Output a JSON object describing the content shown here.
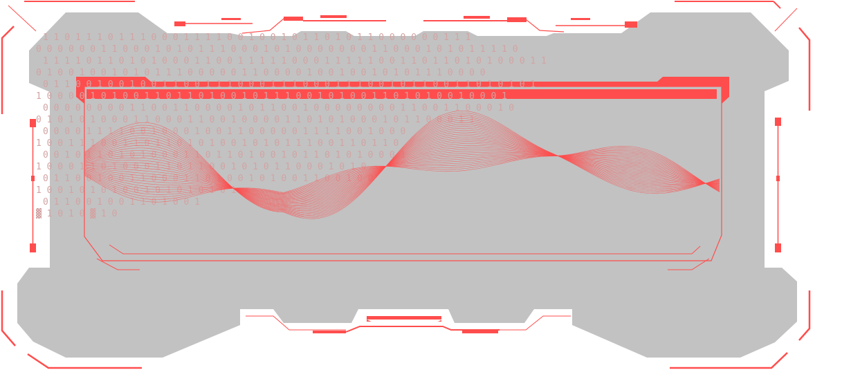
{
  "colors": {
    "background": "#ffffff",
    "panel": "#c2c2c2",
    "accent": "#ff4d4d",
    "binary_text": "#d3a3a3"
  },
  "binary_rows": [
    "1 1 0 1 1 1 0 1 1 1 0 0 0 1 1 1 1 0 0 1 0 0 1 0 1 1 0 1 0 1 1 0 0 0 0 0 0 1 1 1",
    "0 0 0 0 0 0 1 1 0 0 0 1 0 1 0 1 1 1 0 0 0 1 0 1 0 0 0 0 0 0 0 1 1 0 0 0 1 0 1 0 1 1 1 1 0",
    "1 1 1 1 0 1 1 0 1 0 1 0 0 0 1 1 0 0 1 1 1 1 1 0 0 0 1 1 1 1 1 0 0 1 1 0 1 1 0 1 0 1 0 0 0 1 1",
    "0 1 0 0 1 0 0 1 0 1 0 1 1 1 0 0 0 0 0 1 1 0 0 0 0 1 0 0 1 0 0 1 0 1 0 1 1 1 0 0 0 0",
    "0 1 1 0 0 1 0 0 1 0 0 1 1 0 0 1 1 1 0 0 0 1 1 1 0 0 0 1 1 1 0 0 1 0 1 1 0 0 1 1 0 1 0 1 0 1",
    "1 0 0 0 0 1 0 1 0 0 1 1 0 1 1 0 1 0 0 1 0 1 1 1 0 0 1 0 1 0 0 1 1 0 1 0 1 0 0 1 0 0 0 1",
    "0 0 0 0 0 0 0 0 1 1 0 0 1 1 0 0 0 0 1 0 1 1 0 0 1 0 0 0 0 0 0 0 0 1 1 0 0 1 1 0 0 0 1 0",
    "0 1 0 1 0 1 0 0 0 1 1 0 0 0 1 1 0 0 1 0 0 0   0 1 1 0 1 0 1 0 0 0 1 0 1 1 0 0 0 1 1",
    "0 0 0   0 1 1 1   1 0 0 1   0 0 0 1 0 0 1   1 0 0 0 0   0 1 1 1   1 0 0 1   0 0 0",
    "1 0 0   1 1 1 0   0 1 1 0   1 1 0 1 0 1 0   0 1 0 1 0   1 1 1 0   0 1 1 0   1 1 0",
    "0 0 1   0 1 1 0   1 0 1 0   0 0 1 1 0 1 1   0 1 0 0 1   0 1 1 0   1 0 1 0   0 0 1",
    "1 0   0 0 1   1 0 1   0 0 0   1 1 0 1   1 0 0 1   0 1 0   1 1 0   0 0 1 0   1 0",
    "0 1   1 0 0   1 0 0   1 1 0   0 0 1 1   0 1 0 0   1 0 1   0 0 1   1 0 0 1   0 0",
    "1 0   0 1   0 1   0   1   0 0   1   0 1   0   1 0   1   0 1",
    "0   1   1   0   0   1   0   0   1   1   0   1   0   0   1",
    "▓     1     0     1     0     ▓     1     0"
  ]
}
